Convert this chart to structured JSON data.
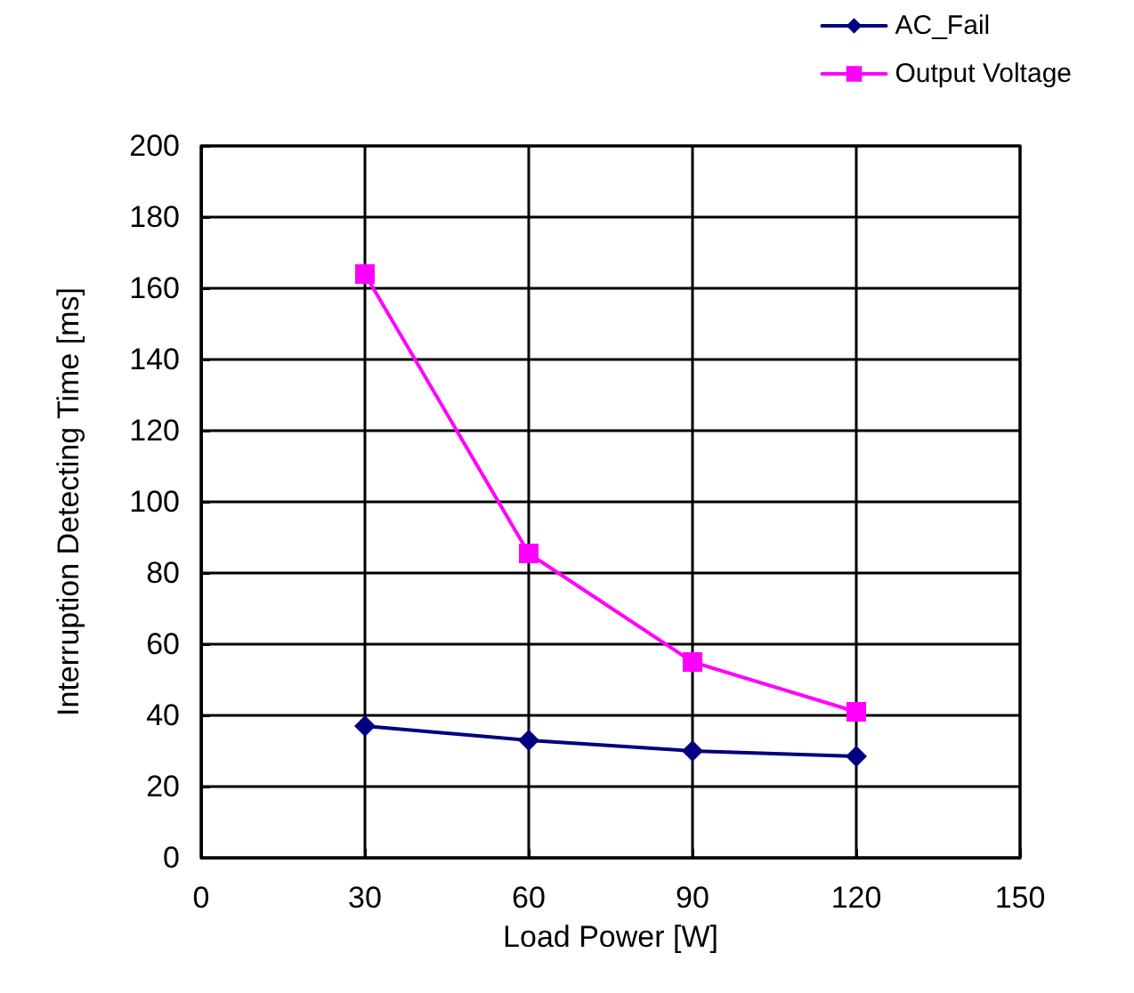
{
  "chart_data": {
    "type": "line",
    "xlabel": "Load Power [W]",
    "ylabel": "Interruption Detecting Time [ms]",
    "x": [
      30,
      60,
      90,
      120
    ],
    "series": [
      {
        "name": "AC_Fail",
        "color": "#000080",
        "marker": "diamond",
        "values": [
          37,
          33,
          30,
          28.5
        ]
      },
      {
        "name": "Output Voltage",
        "color": "#ff00ff",
        "marker": "square",
        "values": [
          164,
          85.5,
          55,
          41
        ]
      }
    ],
    "xlim": [
      0,
      150
    ],
    "xticks": [
      0,
      30,
      60,
      90,
      120,
      150
    ],
    "ylim": [
      0,
      200
    ],
    "yticks": [
      0,
      20,
      40,
      60,
      80,
      100,
      120,
      140,
      160,
      180,
      200
    ],
    "grid": true,
    "legend": "top right",
    "line_style": "solid"
  }
}
